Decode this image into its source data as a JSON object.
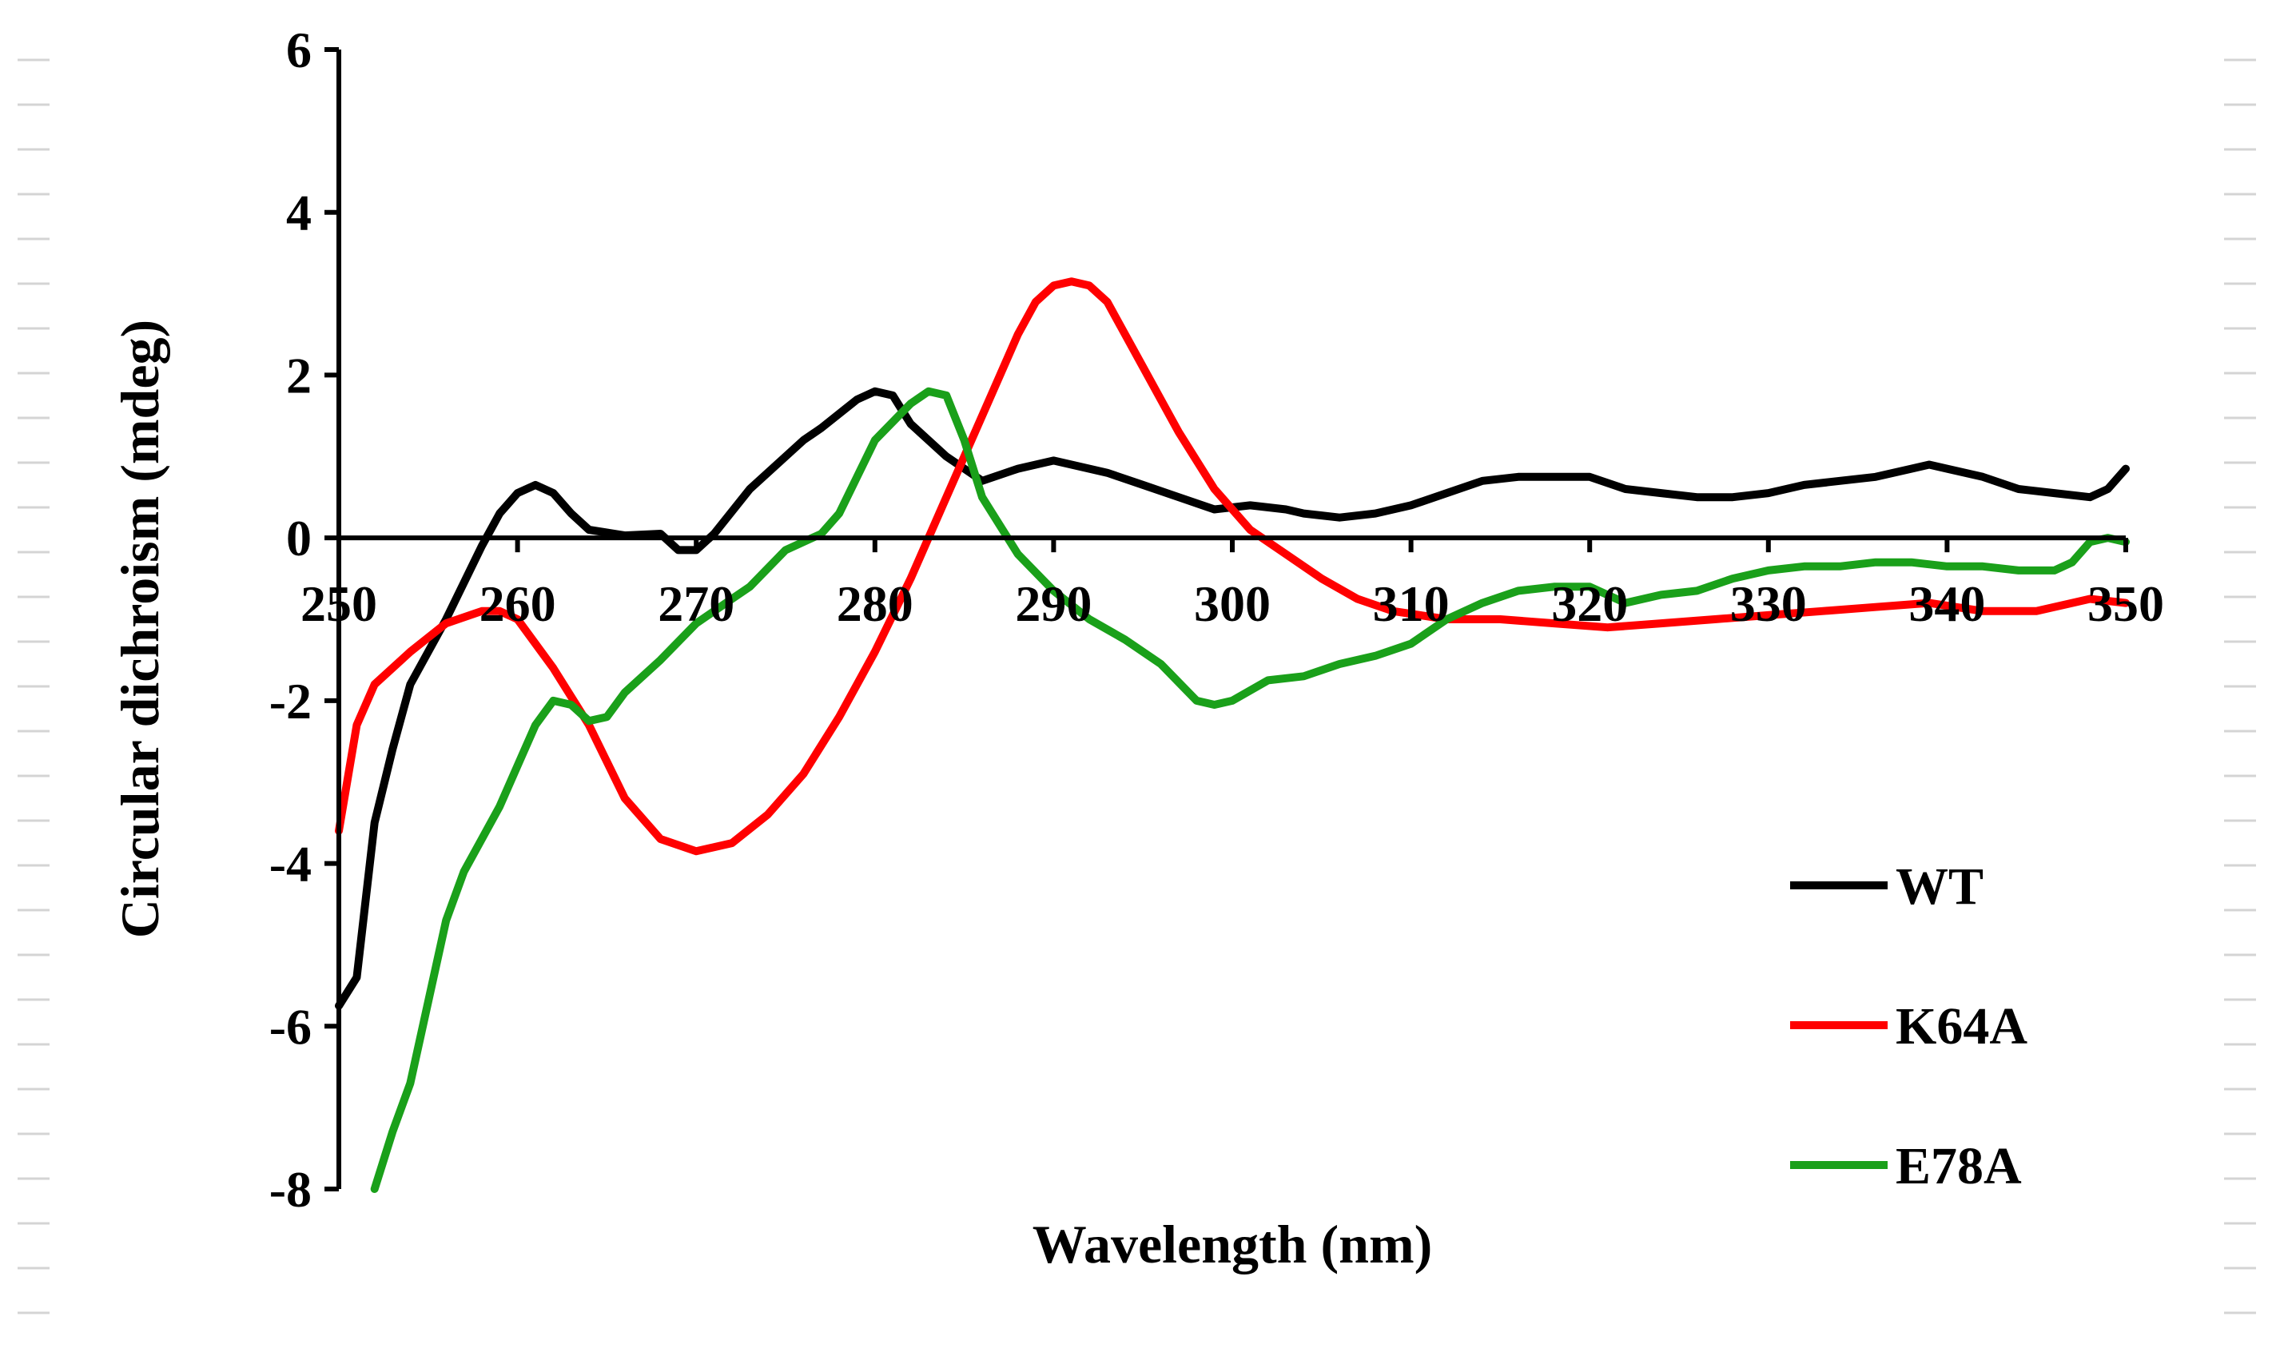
{
  "chart_data": {
    "type": "line",
    "xlabel": "Wavelength (nm)",
    "ylabel": "Circular dichroism (mdeg)",
    "xlim": [
      250,
      350
    ],
    "ylim": [
      -8,
      6
    ],
    "x_ticks": [
      250,
      260,
      270,
      280,
      290,
      300,
      310,
      320,
      330,
      340,
      350
    ],
    "y_ticks": [
      -8,
      -6,
      -4,
      -2,
      0,
      2,
      4,
      6
    ],
    "legend_position": "bottom-right",
    "grid": false,
    "series": [
      {
        "name": "WT",
        "color": "#000000",
        "points": [
          [
            250,
            -5.75
          ],
          [
            251,
            -5.4
          ],
          [
            252,
            -3.5
          ],
          [
            253,
            -2.6
          ],
          [
            254,
            -1.8
          ],
          [
            256,
            -1.0
          ],
          [
            258,
            -0.1
          ],
          [
            259,
            0.3
          ],
          [
            260,
            0.55
          ],
          [
            261,
            0.65
          ],
          [
            262,
            0.55
          ],
          [
            263,
            0.3
          ],
          [
            264,
            0.1
          ],
          [
            266,
            0.03
          ],
          [
            268,
            0.05
          ],
          [
            269,
            -0.15
          ],
          [
            270,
            -0.15
          ],
          [
            271,
            0.05
          ],
          [
            273,
            0.6
          ],
          [
            275,
            1.0
          ],
          [
            276,
            1.2
          ],
          [
            277,
            1.35
          ],
          [
            279,
            1.7
          ],
          [
            280,
            1.8
          ],
          [
            281,
            1.75
          ],
          [
            282,
            1.4
          ],
          [
            284,
            1.0
          ],
          [
            286,
            0.7
          ],
          [
            288,
            0.85
          ],
          [
            289,
            0.9
          ],
          [
            290,
            0.95
          ],
          [
            291,
            0.9
          ],
          [
            293,
            0.8
          ],
          [
            295,
            0.65
          ],
          [
            297,
            0.5
          ],
          [
            299,
            0.35
          ],
          [
            301,
            0.4
          ],
          [
            303,
            0.35
          ],
          [
            304,
            0.3
          ],
          [
            306,
            0.25
          ],
          [
            308,
            0.3
          ],
          [
            310,
            0.4
          ],
          [
            312,
            0.55
          ],
          [
            314,
            0.7
          ],
          [
            316,
            0.75
          ],
          [
            318,
            0.75
          ],
          [
            320,
            0.75
          ],
          [
            322,
            0.6
          ],
          [
            324,
            0.55
          ],
          [
            326,
            0.5
          ],
          [
            328,
            0.5
          ],
          [
            330,
            0.55
          ],
          [
            332,
            0.65
          ],
          [
            334,
            0.7
          ],
          [
            336,
            0.75
          ],
          [
            338,
            0.85
          ],
          [
            339,
            0.9
          ],
          [
            340,
            0.85
          ],
          [
            342,
            0.75
          ],
          [
            344,
            0.6
          ],
          [
            346,
            0.55
          ],
          [
            348,
            0.5
          ],
          [
            349,
            0.6
          ],
          [
            350,
            0.85
          ]
        ]
      },
      {
        "name": "K64A",
        "color": "#ff0000",
        "points": [
          [
            250,
            -3.6
          ],
          [
            251,
            -2.3
          ],
          [
            252,
            -1.8
          ],
          [
            254,
            -1.4
          ],
          [
            256,
            -1.05
          ],
          [
            258,
            -0.9
          ],
          [
            259,
            -0.9
          ],
          [
            260,
            -1.0
          ],
          [
            262,
            -1.6
          ],
          [
            264,
            -2.3
          ],
          [
            266,
            -3.2
          ],
          [
            268,
            -3.7
          ],
          [
            270,
            -3.85
          ],
          [
            272,
            -3.75
          ],
          [
            274,
            -3.4
          ],
          [
            276,
            -2.9
          ],
          [
            278,
            -2.2
          ],
          [
            280,
            -1.4
          ],
          [
            282,
            -0.5
          ],
          [
            284,
            0.5
          ],
          [
            286,
            1.5
          ],
          [
            288,
            2.5
          ],
          [
            289,
            2.9
          ],
          [
            290,
            3.1
          ],
          [
            291,
            3.15
          ],
          [
            292,
            3.1
          ],
          [
            293,
            2.9
          ],
          [
            295,
            2.1
          ],
          [
            297,
            1.3
          ],
          [
            299,
            0.6
          ],
          [
            301,
            0.1
          ],
          [
            303,
            -0.2
          ],
          [
            305,
            -0.5
          ],
          [
            307,
            -0.75
          ],
          [
            309,
            -0.9
          ],
          [
            312,
            -1.0
          ],
          [
            315,
            -1.0
          ],
          [
            318,
            -1.05
          ],
          [
            321,
            -1.1
          ],
          [
            324,
            -1.05
          ],
          [
            327,
            -1.0
          ],
          [
            330,
            -0.95
          ],
          [
            333,
            -0.9
          ],
          [
            336,
            -0.85
          ],
          [
            339,
            -0.8
          ],
          [
            342,
            -0.9
          ],
          [
            345,
            -0.9
          ],
          [
            347,
            -0.8
          ],
          [
            348,
            -0.75
          ],
          [
            350,
            -0.8
          ]
        ]
      },
      {
        "name": "E78A",
        "color": "#1aa01a",
        "points": [
          [
            252,
            -8.0
          ],
          [
            253,
            -7.3
          ],
          [
            254,
            -6.7
          ],
          [
            255,
            -5.7
          ],
          [
            256,
            -4.7
          ],
          [
            257,
            -4.1
          ],
          [
            258,
            -3.7
          ],
          [
            259,
            -3.3
          ],
          [
            260,
            -2.8
          ],
          [
            261,
            -2.3
          ],
          [
            262,
            -2.0
          ],
          [
            263,
            -2.05
          ],
          [
            264,
            -2.25
          ],
          [
            265,
            -2.2
          ],
          [
            266,
            -1.9
          ],
          [
            268,
            -1.5
          ],
          [
            270,
            -1.05
          ],
          [
            272,
            -0.75
          ],
          [
            273,
            -0.6
          ],
          [
            275,
            -0.15
          ],
          [
            277,
            0.05
          ],
          [
            278,
            0.3
          ],
          [
            280,
            1.2
          ],
          [
            282,
            1.65
          ],
          [
            283,
            1.8
          ],
          [
            284,
            1.75
          ],
          [
            285,
            1.2
          ],
          [
            286,
            0.5
          ],
          [
            288,
            -0.2
          ],
          [
            290,
            -0.65
          ],
          [
            292,
            -1.0
          ],
          [
            294,
            -1.25
          ],
          [
            296,
            -1.55
          ],
          [
            298,
            -2.0
          ],
          [
            299,
            -2.05
          ],
          [
            300,
            -2.0
          ],
          [
            302,
            -1.75
          ],
          [
            304,
            -1.7
          ],
          [
            306,
            -1.55
          ],
          [
            308,
            -1.45
          ],
          [
            310,
            -1.3
          ],
          [
            312,
            -1.0
          ],
          [
            314,
            -0.8
          ],
          [
            316,
            -0.65
          ],
          [
            318,
            -0.6
          ],
          [
            320,
            -0.6
          ],
          [
            322,
            -0.8
          ],
          [
            324,
            -0.7
          ],
          [
            326,
            -0.65
          ],
          [
            328,
            -0.5
          ],
          [
            330,
            -0.4
          ],
          [
            332,
            -0.35
          ],
          [
            334,
            -0.35
          ],
          [
            336,
            -0.3
          ],
          [
            338,
            -0.3
          ],
          [
            340,
            -0.35
          ],
          [
            342,
            -0.35
          ],
          [
            344,
            -0.4
          ],
          [
            346,
            -0.4
          ],
          [
            347,
            -0.3
          ],
          [
            348,
            -0.05
          ],
          [
            349,
            0.0
          ],
          [
            350,
            -0.05
          ]
        ]
      }
    ]
  }
}
